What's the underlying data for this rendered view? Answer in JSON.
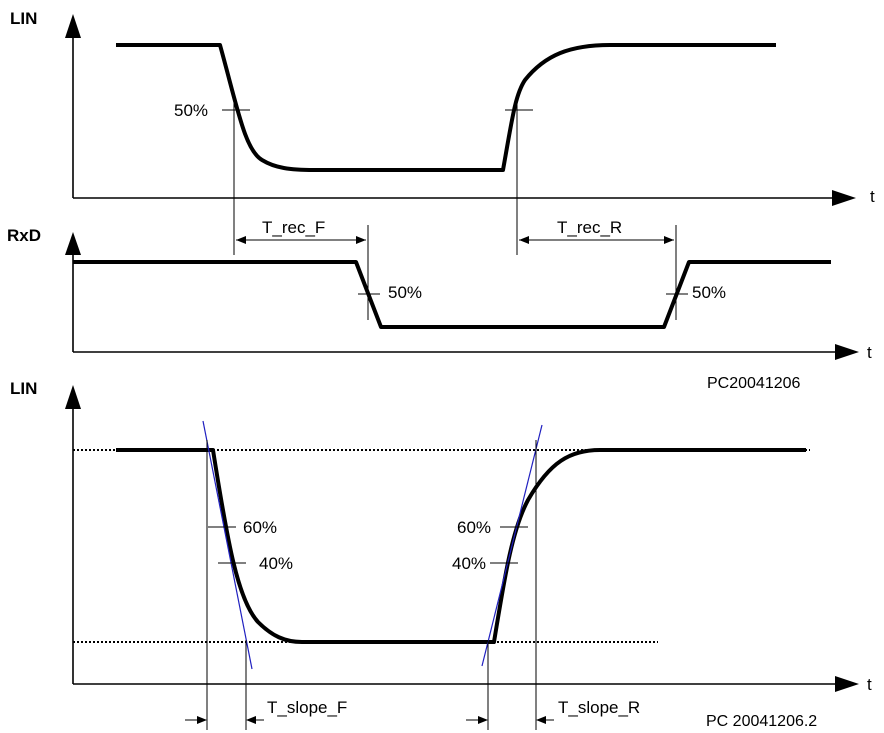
{
  "panel1": {
    "y_axis_label": "LIN",
    "t_label": "t",
    "threshold_label": "50%"
  },
  "panel2": {
    "y_axis_label": "RxD",
    "t_label": "t",
    "falling_threshold_label": "50%",
    "rising_threshold_label": "50%",
    "delay_falling_label": "T_rec_F",
    "delay_rising_label": "T_rec_R",
    "reference": "PC20041206"
  },
  "panel3": {
    "y_axis_label": "LIN",
    "t_label": "t",
    "falling_60_label": "60%",
    "falling_40_label": "40%",
    "rising_60_label": "60%",
    "rising_40_label": "40%",
    "slope_falling_label": "T_slope_F",
    "slope_rising_label": "T_slope_R",
    "reference": "PC 20041206.2"
  }
}
